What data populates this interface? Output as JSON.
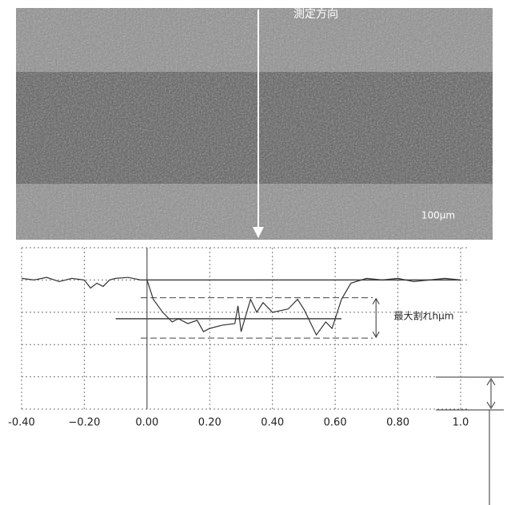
{
  "chart_data": {
    "type": "line",
    "direction_label": "測定方向",
    "scale_label": "100μm",
    "annotation": "最大割れhμm",
    "color": "#333333",
    "x": [
      -0.4,
      -0.36,
      -0.32,
      -0.28,
      -0.24,
      -0.2,
      -0.18,
      -0.16,
      -0.14,
      -0.12,
      -0.1,
      -0.06,
      -0.02,
      0.0,
      0.02,
      0.05,
      0.08,
      0.1,
      0.13,
      0.16,
      0.18,
      0.2,
      0.24,
      0.28,
      0.29,
      0.3,
      0.33,
      0.35,
      0.37,
      0.4,
      0.45,
      0.48,
      0.5,
      0.54,
      0.57,
      0.59,
      0.62,
      0.65,
      0.7,
      0.75,
      0.8,
      0.85,
      0.9,
      0.95,
      1.0
    ],
    "values": [
      0.05,
      0.0,
      0.08,
      -0.05,
      0.05,
      0.0,
      -0.25,
      -0.1,
      -0.2,
      0.0,
      0.05,
      0.08,
      0.0,
      0.0,
      -0.6,
      -1.0,
      -1.3,
      -1.2,
      -1.35,
      -1.25,
      -1.6,
      -1.5,
      -1.4,
      -1.35,
      -0.8,
      -1.6,
      -0.6,
      -1.0,
      -0.7,
      -1.0,
      -0.9,
      -0.6,
      -0.9,
      -1.7,
      -1.3,
      -1.5,
      -0.6,
      -0.1,
      0.05,
      0.0,
      0.05,
      -0.05,
      0.0,
      0.05,
      0.0
    ],
    "xlim": [
      -0.4,
      1.0
    ],
    "ylim": [
      -4,
      1
    ],
    "xticks": [
      {
        "value": -0.4,
        "label": "-0.40"
      },
      {
        "value": -0.2,
        "label": "−0.20"
      },
      {
        "value": 0.0,
        "label": "0.00"
      },
      {
        "value": 0.2,
        "label": "0.20"
      },
      {
        "value": 0.4,
        "label": "0.40"
      },
      {
        "value": 0.6,
        "label": "0.60"
      },
      {
        "value": 0.8,
        "label": "0.80"
      },
      {
        "value": 1.0,
        "label": "1.0"
      }
    ],
    "ygrid": [
      1,
      0,
      -1,
      -2,
      -3,
      -4
    ],
    "reference_lines": [
      {
        "y": 0,
        "x": [
          0.0,
          1.0
        ],
        "style": "solid"
      },
      {
        "y": -0.55,
        "x": [
          -0.02,
          0.72
        ],
        "style": "dashed"
      },
      {
        "y": -1.2,
        "x": [
          -0.1,
          0.62
        ],
        "style": "solid"
      },
      {
        "y": -1.8,
        "x": [
          -0.02,
          0.72
        ],
        "style": "dashed"
      }
    ],
    "grid": true
  }
}
